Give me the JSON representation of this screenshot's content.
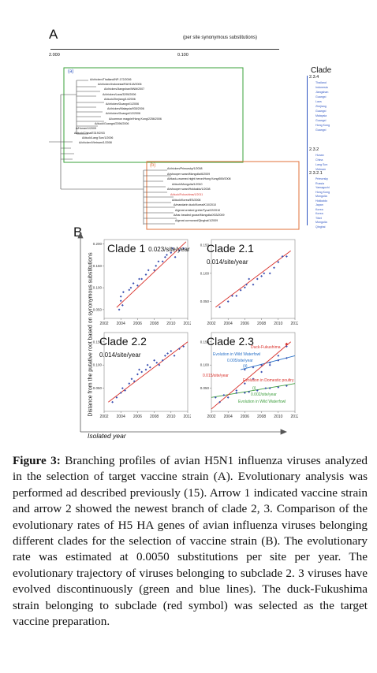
{
  "panel_a": {
    "label": "A",
    "scale_caption": "(per site synonymous substitutions)",
    "scale_left": "2.000",
    "scale_mid": "0.100",
    "box_a_label": "(a)",
    "box_b_label": "(b)",
    "clade_header": "Clade",
    "clade_groups": [
      {
        "name": "2.3.4",
        "locations": [
          "Thailand",
          "Indonesia",
          "Jiangshan",
          "Guangxi",
          "Laos",
          "Zhejiang",
          "Guangxi",
          "Malaysia",
          "Guangxi",
          "Hong Kong",
          "Guangxi"
        ]
      },
      {
        "name": "2.3.2",
        "locations": [
          "Hunan",
          "China",
          "Lang Son",
          "Vietnam"
        ]
      },
      {
        "name": "2.3.2.1",
        "locations": [
          "Primorsky",
          "Russia",
          "Yamaguchi",
          "Hong Kong",
          "Mongolia",
          "Hokkaido",
          "Japan",
          "Korea",
          "Korea",
          "Tibet",
          "Mongolia",
          "Qinghai"
        ]
      }
    ],
    "strains_top": [
      "A/chicken/Thailand/NP-172/2006",
      "A/chicken/Indonesia/RAH118/2006",
      "A/chicken/Jiangshan/NNM/2007",
      "A/chicken/Laos/3295/2006",
      "A/duck/Zhejiang/14/2006",
      "A/chicken/Guangxi/1/2006",
      "A/chicken/Malaysia/935/2006",
      "A/chicken/Guangxi/12/2006",
      "A/common magpie/Hong Kong/2256/2006",
      "A/duck/Guangxi/2396/2006",
      "A/Hunan/1/2009",
      "A/duck/China/E319/2/03",
      "A/duck/Lang Son/1/2006",
      "A/chicken/Vietnam/1/2008"
    ],
    "strains_bottom": [
      "A/chicken/Primorsky/1/2008",
      "A/whooper swan/Mongolia/6/2009",
      "A/black-crowned night heron/Hong Kong/659/2008",
      "A/duck/Mongolia/1/2010",
      "A/whooper swan/Hokkaido/1/2008",
      "A/duck/Fukushima/1/2011",
      "A/duck/Korea/ES/2008",
      "A/mandarin duck/Korea/K10/2010",
      "A/great crested grebe/Tyva/22/2010",
      "A/bar-headed goose/Mongolia/X53/2009",
      "A/great cormorant/Qinghai/1/2009"
    ]
  },
  "panel_b": {
    "label": "B",
    "y_axis_label": "Distance from the putative root based on synonymous substitutions",
    "x_axis_label": "Isolated year",
    "clade1_title": "Clade 1",
    "clade1_rate": "0.023/site/year",
    "clade21_title": "Clade 2.1",
    "clade21_rate": "0.014/site/year",
    "clade22_title": "Clade 2.2",
    "clade22_rate": "0.014/site/year",
    "clade23_title": "Clade 2.3",
    "ann_duck_fukushima": "Duck-Fukushima",
    "ann_wild_waterfowl_blue": "Evolution in Wild Waterfowl",
    "ann_rate_blue": "0.005/site/year",
    "ann_ii": "(ii)",
    "ann_rate_red": "0.015/site/year",
    "ann_domestic": "Evolution in Domestic poultry",
    "ann_i": "(i)",
    "ann_rate_green": "0.002/site/year",
    "ann_wild_waterfowl_green": "Evolution in Wild Waterfowl"
  },
  "chart_data": [
    {
      "type": "scatter",
      "title": "Clade 1",
      "annotation": "0.023/site/year",
      "x_ticks": [
        "2002",
        "2004",
        "2006",
        "2008",
        "2010",
        "2012"
      ],
      "y_ticks": [
        "0.050",
        "0.100",
        "0.150",
        "0.200"
      ],
      "xlim": [
        2002,
        2012
      ],
      "ylim": [
        0.03,
        0.21
      ],
      "x": [
        2003.8,
        2004,
        2004,
        2004.2,
        2004.3,
        2005,
        2005.2,
        2005.5,
        2006,
        2006.2,
        2006.5,
        2007,
        2007.3,
        2008,
        2008.2,
        2008.5,
        2009,
        2009.3,
        2009.5,
        2010,
        2010.2,
        2010.5,
        2011,
        2011.5
      ],
      "y": [
        0.05,
        0.07,
        0.08,
        0.06,
        0.09,
        0.095,
        0.1,
        0.11,
        0.105,
        0.12,
        0.12,
        0.13,
        0.14,
        0.14,
        0.15,
        0.16,
        0.16,
        0.17,
        0.175,
        0.18,
        0.19,
        0.17,
        0.185,
        0.19
      ],
      "fit": [
        [
          2003.5,
          0.055
        ],
        [
          2011.8,
          0.205
        ]
      ]
    },
    {
      "type": "scatter",
      "title": "Clade 2.1",
      "annotation": "0.014/site/year",
      "x_ticks": [
        "2002",
        "2004",
        "2006",
        "2008",
        "2010",
        "2012"
      ],
      "y_ticks": [
        "0.050",
        "0.100",
        "0.150"
      ],
      "xlim": [
        2002,
        2012
      ],
      "ylim": [
        0.02,
        0.16
      ],
      "x": [
        2003,
        2004,
        2004.5,
        2005,
        2005.5,
        2006,
        2006.2,
        2006.5,
        2007,
        2007.5,
        2008,
        2008.3,
        2009,
        2009.5,
        2010,
        2010.5,
        2011
      ],
      "y": [
        0.04,
        0.05,
        0.06,
        0.06,
        0.07,
        0.075,
        0.08,
        0.09,
        0.08,
        0.09,
        0.095,
        0.1,
        0.1,
        0.11,
        0.12,
        0.13,
        0.13
      ],
      "fit": [
        [
          2002.5,
          0.04
        ],
        [
          2011.5,
          0.14
        ]
      ]
    },
    {
      "type": "scatter",
      "title": "Clade 2.2",
      "annotation": "0.014/site/year",
      "x_ticks": [
        "2002",
        "2004",
        "2006",
        "2008",
        "2010",
        "2012"
      ],
      "y_ticks": [
        "0.050",
        "0.100",
        "0.150"
      ],
      "xlim": [
        2002,
        2012
      ],
      "ylim": [
        0.0,
        0.17
      ],
      "x": [
        2003,
        2003.5,
        2004,
        2004.2,
        2004.5,
        2005,
        2005.3,
        2005.6,
        2006,
        2006.2,
        2006.5,
        2007,
        2007.2,
        2007.5,
        2008,
        2008.3,
        2008.6,
        2009,
        2009.3,
        2009.6,
        2010,
        2010.4,
        2011,
        2011.5
      ],
      "y": [
        0.02,
        0.03,
        0.04,
        0.05,
        0.045,
        0.06,
        0.07,
        0.065,
        0.08,
        0.09,
        0.085,
        0.09,
        0.1,
        0.095,
        0.11,
        0.105,
        0.1,
        0.11,
        0.12,
        0.125,
        0.13,
        0.12,
        0.135,
        0.14
      ],
      "fit": [
        [
          2002.5,
          0.02
        ],
        [
          2012,
          0.15
        ]
      ]
    },
    {
      "type": "scatter",
      "title": "Clade 2.3",
      "x_ticks": [
        "2002",
        "2004",
        "2006",
        "2008",
        "2010",
        "2012"
      ],
      "y_ticks": [
        "0.050",
        "0.100",
        "0.150"
      ],
      "xlim": [
        2002,
        2012
      ],
      "ylim": [
        0.0,
        0.17
      ],
      "series": [
        {
          "name": "(i) Evolution in Wild Waterfowl",
          "x": [
            2002.5,
            2003.5,
            2005,
            2006,
            2006.5,
            2007.5,
            2008.5,
            2009,
            2010,
            2011
          ],
          "y": [
            0.03,
            0.035,
            0.04,
            0.04,
            0.042,
            0.045,
            0.05,
            0.05,
            0.052,
            0.055
          ],
          "fit": [
            [
              2002,
              0.03
            ],
            [
              2012,
              0.06
            ]
          ]
        },
        {
          "name": "(ii) Evolution in Wild Waterfowl",
          "x": [
            2006,
            2007,
            2008,
            2009,
            2010,
            2011
          ],
          "y": [
            0.09,
            0.095,
            0.1,
            0.105,
            0.11,
            0.115
          ],
          "fit": [
            [
              2005.5,
              0.09
            ],
            [
              2012,
              0.12
            ]
          ]
        },
        {
          "name": "Evolution in Domestic poultry",
          "x": [
            2003,
            2004,
            2005,
            2006,
            2007,
            2008,
            2009,
            2010,
            2011
          ],
          "y": [
            0.02,
            0.03,
            0.045,
            0.06,
            0.07,
            0.085,
            0.1,
            0.12,
            0.14
          ],
          "fit": [
            [
              2002,
              0.005
            ],
            [
              2011.5,
              0.15
            ]
          ]
        }
      ]
    }
  ],
  "caption": {
    "figure_label": "Figure 3:",
    "text": " Branching profiles of avian H5N1 influenza viruses analyzed in the selection of target vaccine strain (A). Evolutionary analysis was performed ad described previously (15). Arrow 1 indicated vaccine strain and arrow 2 showed the newest branch of clade 2, 3. Comparison of the evolutionary rates of H5 HA genes of avian influenza viruses belonging different clades for the selection of vaccine strain (B). The evolutionary rate was estimated at 0.0050 substitutions per site per year. The evolutionary trajectory of viruses belonging to subclade 2. 3 viruses have evolved discontinuously (green and blue lines). The duck-Fukushima strain belonging to subclade (red symbol) was selected as the target vaccine preparation."
  },
  "colors": {
    "green_box": "#3aa13a",
    "orange_box": "#e0703a",
    "fit_red": "#d9302a",
    "point_blue": "#3a4fb0",
    "fit_green": "#3f9f3f",
    "fit_blue": "#2a72c8",
    "location_blue": "#2f55c2"
  }
}
